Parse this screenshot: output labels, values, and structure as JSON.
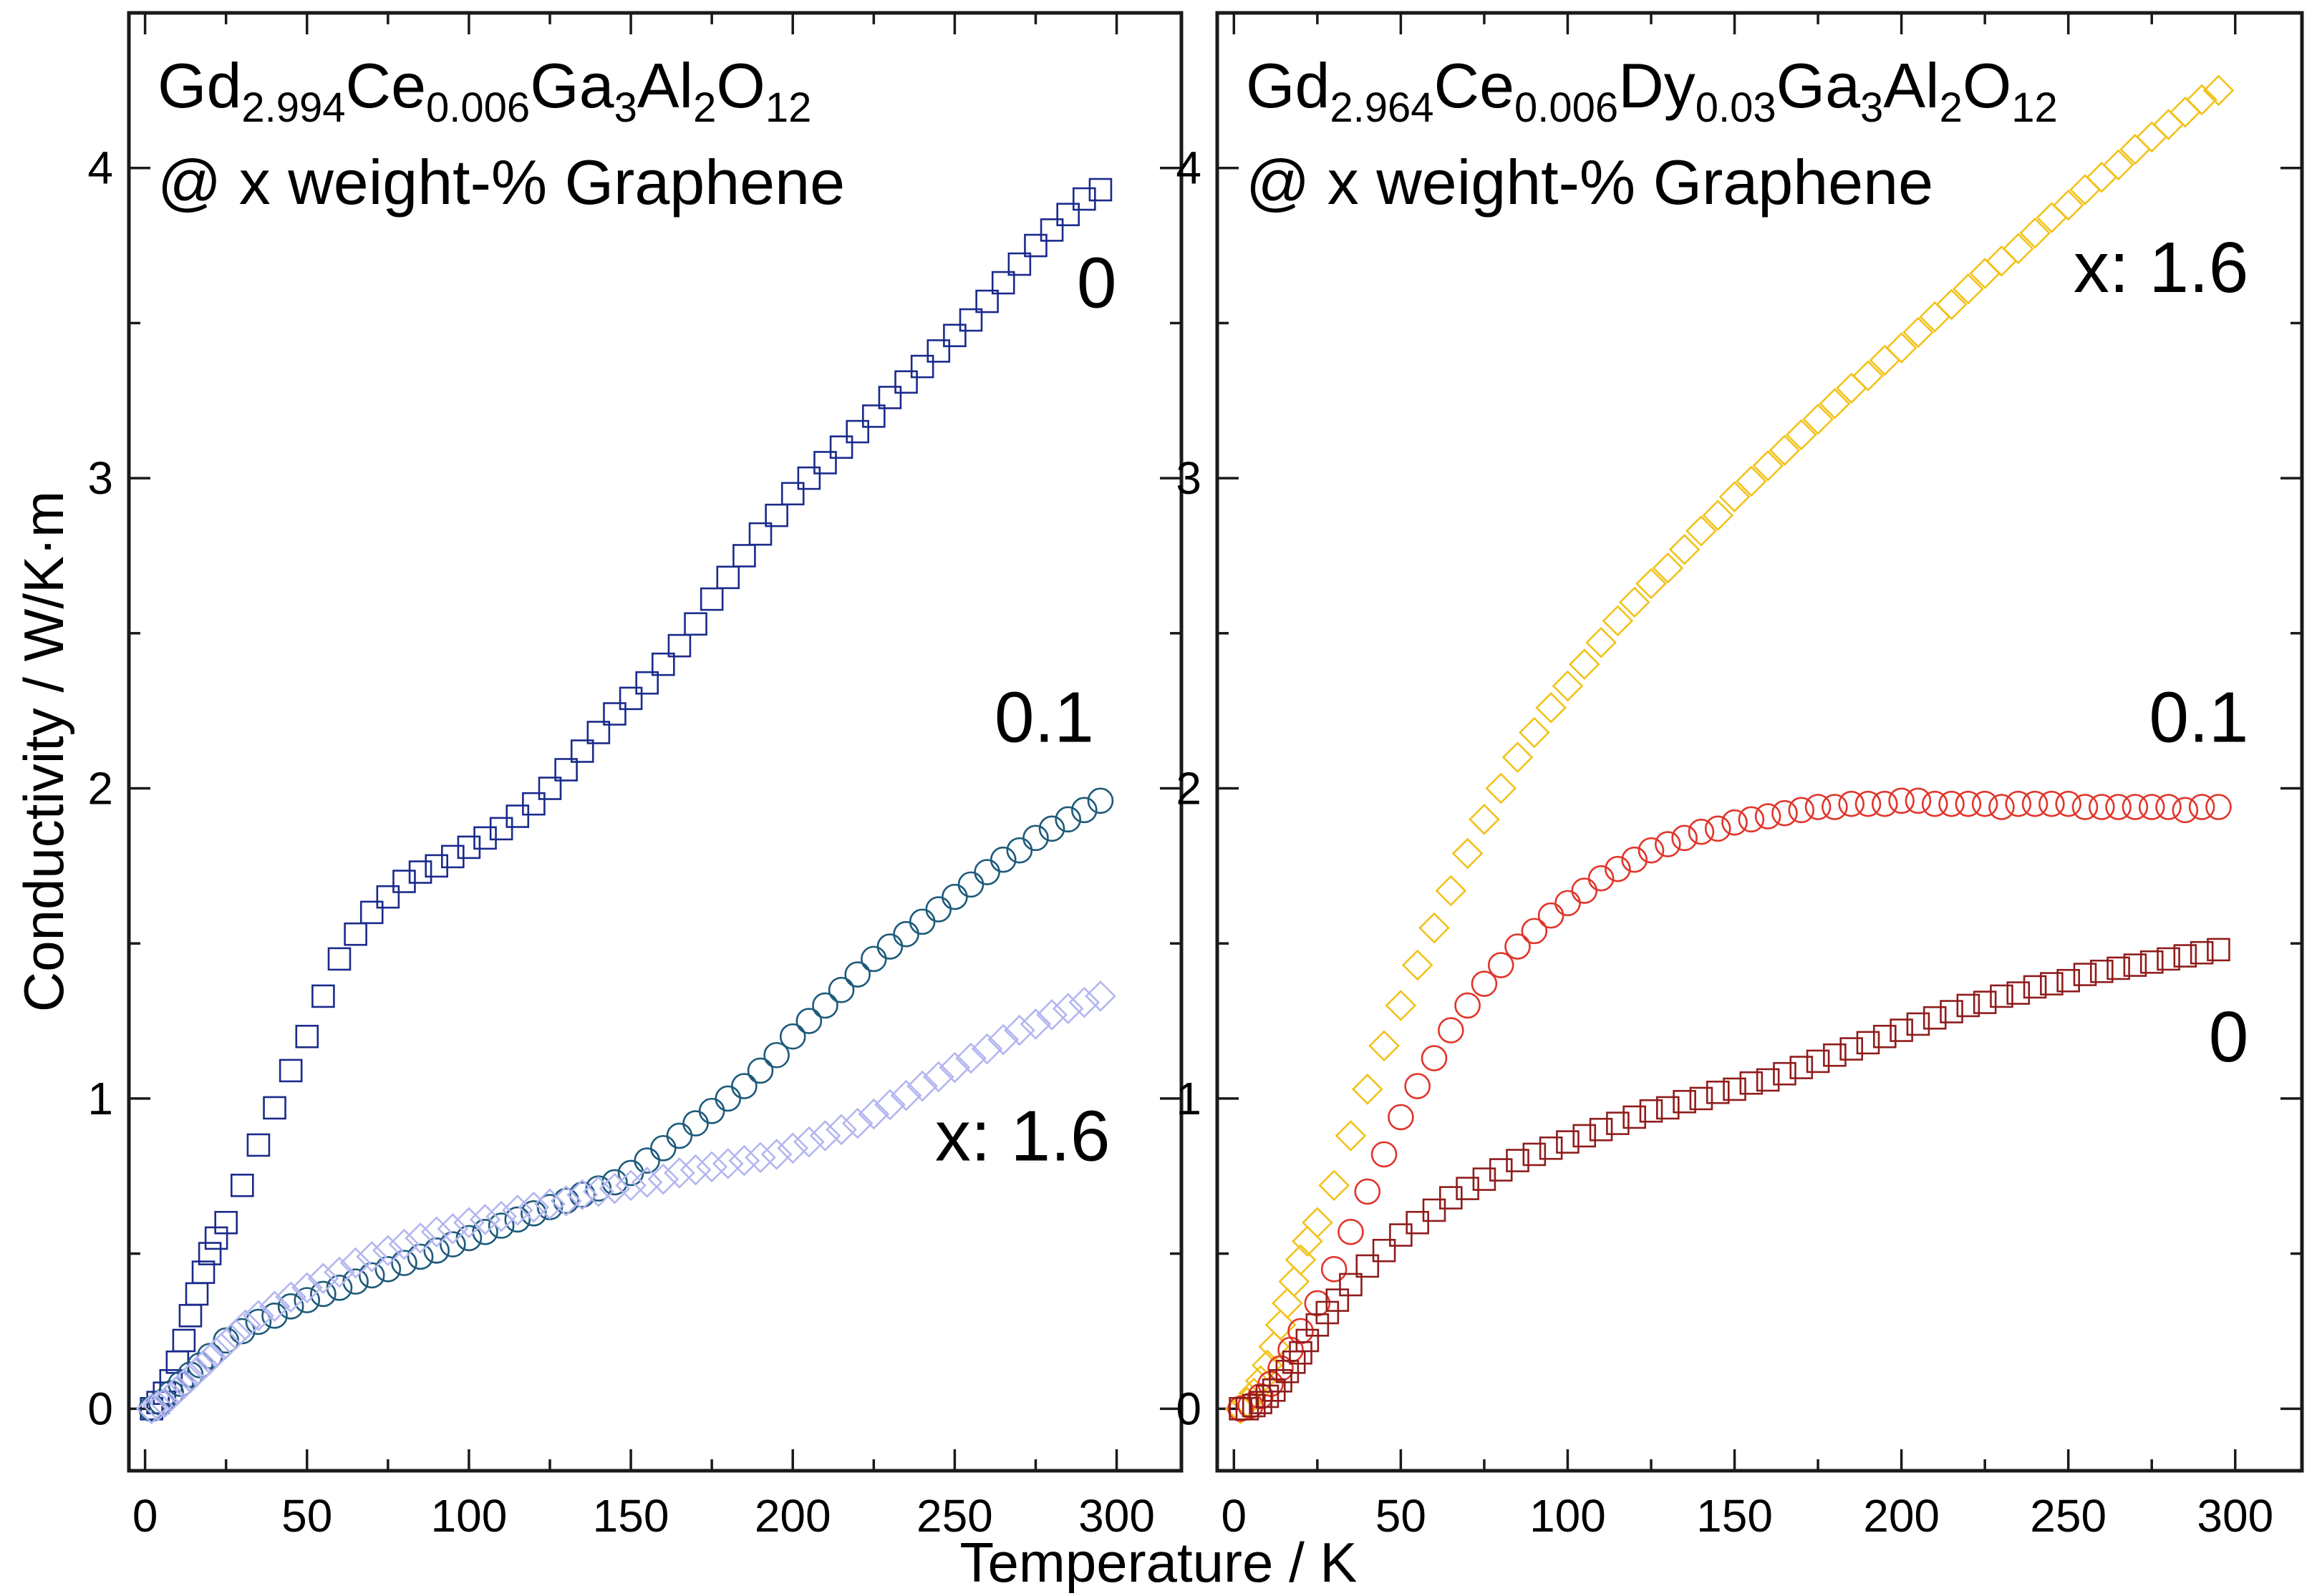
{
  "figure": {
    "xlabel": "Temperature / K",
    "ylabel": "Conductivity / W/K·m"
  },
  "chart_data": [
    {
      "type": "scatter",
      "id": "left",
      "title_line1": [
        {
          "t": "Gd",
          "sub": false
        },
        {
          "t": "2.994",
          "sub": true
        },
        {
          "t": "Ce",
          "sub": false
        },
        {
          "t": "0.006",
          "sub": true
        },
        {
          "t": "Ga",
          "sub": false
        },
        {
          "t": "3",
          "sub": true
        },
        {
          "t": "Al",
          "sub": false
        },
        {
          "t": "2",
          "sub": true
        },
        {
          "t": "O",
          "sub": false
        },
        {
          "t": "12",
          "sub": true
        }
      ],
      "title_line2": "@ x weight-% Graphene",
      "xlim": [
        -5,
        320
      ],
      "ylim": [
        -0.2,
        4.5
      ],
      "xticks": [
        0,
        50,
        100,
        150,
        200,
        250,
        300
      ],
      "yticks": [
        0,
        1,
        2,
        3,
        4
      ],
      "series": [
        {
          "name": "0",
          "label": "0",
          "marker": "square",
          "color": "#1a2a8c",
          "label_pos": [
            300,
            3.55
          ],
          "x": [
            2,
            4,
            6,
            8,
            10,
            12,
            14,
            16,
            18,
            20,
            22,
            25,
            30,
            35,
            40,
            45,
            50,
            55,
            60,
            65,
            70,
            75,
            80,
            85,
            90,
            95,
            100,
            105,
            110,
            115,
            120,
            125,
            130,
            135,
            140,
            145,
            150,
            155,
            160,
            165,
            170,
            175,
            180,
            185,
            190,
            195,
            200,
            205,
            210,
            215,
            220,
            225,
            230,
            235,
            240,
            245,
            250,
            255,
            260,
            265,
            270,
            275,
            280,
            285,
            290,
            295
          ],
          "y": [
            0.0,
            0.02,
            0.05,
            0.09,
            0.15,
            0.22,
            0.3,
            0.37,
            0.44,
            0.5,
            0.55,
            0.6,
            0.72,
            0.85,
            0.97,
            1.09,
            1.2,
            1.33,
            1.45,
            1.53,
            1.6,
            1.65,
            1.7,
            1.73,
            1.75,
            1.78,
            1.81,
            1.84,
            1.87,
            1.91,
            1.95,
            2.0,
            2.06,
            2.12,
            2.18,
            2.24,
            2.29,
            2.34,
            2.4,
            2.46,
            2.53,
            2.61,
            2.68,
            2.75,
            2.82,
            2.88,
            2.95,
            3.0,
            3.05,
            3.1,
            3.15,
            3.2,
            3.26,
            3.31,
            3.36,
            3.41,
            3.46,
            3.51,
            3.57,
            3.63,
            3.69,
            3.75,
            3.8,
            3.85,
            3.9,
            3.93
          ]
        },
        {
          "name": "0.1",
          "label": "0.1",
          "marker": "circle",
          "color": "#1d5a7a",
          "label_pos": [
            293,
            2.15
          ],
          "x": [
            2,
            5,
            8,
            11,
            14,
            17,
            20,
            25,
            30,
            35,
            40,
            45,
            50,
            55,
            60,
            65,
            70,
            75,
            80,
            85,
            90,
            95,
            100,
            105,
            110,
            115,
            120,
            125,
            130,
            135,
            140,
            145,
            150,
            155,
            160,
            165,
            170,
            175,
            180,
            185,
            190,
            195,
            200,
            205,
            210,
            215,
            220,
            225,
            230,
            235,
            240,
            245,
            250,
            255,
            260,
            265,
            270,
            275,
            280,
            285,
            290,
            295
          ],
          "y": [
            0.0,
            0.02,
            0.05,
            0.08,
            0.11,
            0.14,
            0.17,
            0.22,
            0.25,
            0.28,
            0.3,
            0.33,
            0.35,
            0.37,
            0.39,
            0.41,
            0.43,
            0.45,
            0.47,
            0.49,
            0.51,
            0.53,
            0.55,
            0.57,
            0.59,
            0.61,
            0.63,
            0.65,
            0.67,
            0.69,
            0.71,
            0.73,
            0.76,
            0.8,
            0.84,
            0.88,
            0.92,
            0.96,
            1.0,
            1.04,
            1.09,
            1.14,
            1.2,
            1.25,
            1.3,
            1.35,
            1.4,
            1.45,
            1.49,
            1.53,
            1.57,
            1.61,
            1.65,
            1.69,
            1.73,
            1.77,
            1.8,
            1.84,
            1.87,
            1.9,
            1.93,
            1.96
          ]
        },
        {
          "name": "x: 1.6",
          "label": "x: 1.6",
          "marker": "diamond",
          "color": "#b3b6f0",
          "label_pos": [
            298,
            0.8
          ],
          "x": [
            2,
            4,
            6,
            8,
            10,
            12,
            14,
            16,
            18,
            20,
            22,
            25,
            28,
            31,
            35,
            40,
            45,
            50,
            55,
            60,
            65,
            70,
            75,
            80,
            85,
            90,
            95,
            100,
            105,
            110,
            115,
            120,
            125,
            130,
            135,
            140,
            145,
            150,
            155,
            160,
            165,
            170,
            175,
            180,
            185,
            190,
            195,
            200,
            205,
            210,
            215,
            220,
            225,
            230,
            235,
            240,
            245,
            250,
            255,
            260,
            265,
            270,
            275,
            280,
            285,
            290,
            295
          ],
          "y": [
            0.0,
            0.01,
            0.02,
            0.04,
            0.06,
            0.08,
            0.1,
            0.12,
            0.14,
            0.16,
            0.18,
            0.21,
            0.24,
            0.27,
            0.3,
            0.33,
            0.36,
            0.39,
            0.42,
            0.44,
            0.47,
            0.49,
            0.51,
            0.53,
            0.55,
            0.57,
            0.58,
            0.6,
            0.61,
            0.62,
            0.64,
            0.65,
            0.66,
            0.67,
            0.69,
            0.7,
            0.71,
            0.72,
            0.73,
            0.74,
            0.76,
            0.77,
            0.78,
            0.79,
            0.8,
            0.81,
            0.82,
            0.84,
            0.86,
            0.88,
            0.9,
            0.92,
            0.95,
            0.98,
            1.01,
            1.04,
            1.07,
            1.1,
            1.13,
            1.16,
            1.19,
            1.22,
            1.24,
            1.27,
            1.29,
            1.31,
            1.33
          ]
        }
      ]
    },
    {
      "type": "scatter",
      "id": "right",
      "title_line1": [
        {
          "t": "Gd",
          "sub": false
        },
        {
          "t": "2.964",
          "sub": true
        },
        {
          "t": "Ce",
          "sub": false
        },
        {
          "t": "0.006",
          "sub": true
        },
        {
          "t": "Dy",
          "sub": false
        },
        {
          "t": "0.03",
          "sub": true
        },
        {
          "t": "Ga",
          "sub": false
        },
        {
          "t": "3",
          "sub": true
        },
        {
          "t": "Al",
          "sub": false
        },
        {
          "t": "2",
          "sub": true
        },
        {
          "t": "O",
          "sub": false
        },
        {
          "t": "12",
          "sub": true
        }
      ],
      "title_line2": "@ x weight-% Graphene",
      "xlim": [
        -5,
        320
      ],
      "ylim": [
        -0.2,
        4.5
      ],
      "xticks": [
        0,
        50,
        100,
        150,
        200,
        250,
        300
      ],
      "yticks": [
        0,
        1,
        2,
        3,
        4
      ],
      "series": [
        {
          "name": "x: 1.6",
          "label": "x: 1.6",
          "marker": "diamond",
          "color": "#f2c21a",
          "label_pos": [
            304,
            3.6
          ],
          "x": [
            2,
            4,
            6,
            8,
            10,
            12,
            14,
            16,
            18,
            20,
            22,
            25,
            30,
            35,
            40,
            45,
            50,
            55,
            60,
            65,
            70,
            75,
            80,
            85,
            90,
            95,
            100,
            105,
            110,
            115,
            120,
            125,
            130,
            135,
            140,
            145,
            150,
            155,
            160,
            165,
            170,
            175,
            180,
            185,
            190,
            195,
            200,
            205,
            210,
            215,
            220,
            225,
            230,
            235,
            240,
            245,
            250,
            255,
            260,
            265,
            270,
            275,
            280,
            285,
            290,
            295
          ],
          "y": [
            0.0,
            0.02,
            0.05,
            0.09,
            0.14,
            0.2,
            0.27,
            0.34,
            0.41,
            0.48,
            0.54,
            0.6,
            0.72,
            0.88,
            1.03,
            1.17,
            1.3,
            1.43,
            1.55,
            1.67,
            1.79,
            1.9,
            2.0,
            2.1,
            2.18,
            2.26,
            2.33,
            2.4,
            2.47,
            2.54,
            2.6,
            2.66,
            2.71,
            2.77,
            2.83,
            2.88,
            2.94,
            2.99,
            3.04,
            3.09,
            3.14,
            3.19,
            3.24,
            3.29,
            3.33,
            3.38,
            3.42,
            3.47,
            3.52,
            3.56,
            3.61,
            3.66,
            3.7,
            3.74,
            3.79,
            3.84,
            3.88,
            3.93,
            3.97,
            4.01,
            4.06,
            4.1,
            4.14,
            4.18,
            4.22,
            4.25
          ]
        },
        {
          "name": "0.1",
          "label": "0.1",
          "marker": "circle",
          "color": "#e0352b",
          "label_pos": [
            304,
            2.15
          ],
          "x": [
            2,
            5,
            8,
            11,
            14,
            17,
            20,
            25,
            30,
            35,
            40,
            45,
            50,
            55,
            60,
            65,
            70,
            75,
            80,
            85,
            90,
            95,
            100,
            105,
            110,
            115,
            120,
            125,
            130,
            135,
            140,
            145,
            150,
            155,
            160,
            165,
            170,
            175,
            180,
            185,
            190,
            195,
            200,
            205,
            210,
            215,
            220,
            225,
            230,
            235,
            240,
            245,
            250,
            255,
            260,
            265,
            270,
            275,
            280,
            285,
            290,
            295
          ],
          "y": [
            0.0,
            0.01,
            0.04,
            0.08,
            0.13,
            0.19,
            0.25,
            0.34,
            0.45,
            0.57,
            0.7,
            0.82,
            0.94,
            1.04,
            1.13,
            1.22,
            1.3,
            1.37,
            1.43,
            1.49,
            1.54,
            1.59,
            1.63,
            1.67,
            1.71,
            1.74,
            1.77,
            1.8,
            1.82,
            1.84,
            1.86,
            1.87,
            1.89,
            1.9,
            1.91,
            1.92,
            1.93,
            1.94,
            1.94,
            1.95,
            1.95,
            1.95,
            1.96,
            1.96,
            1.95,
            1.95,
            1.95,
            1.95,
            1.94,
            1.95,
            1.95,
            1.95,
            1.95,
            1.94,
            1.94,
            1.94,
            1.94,
            1.94,
            1.94,
            1.93,
            1.94,
            1.94
          ]
        },
        {
          "name": "0",
          "label": "0",
          "marker": "square",
          "color": "#8f1c1c",
          "label_pos": [
            304,
            1.12
          ],
          "x": [
            2,
            4,
            6,
            8,
            10,
            12,
            14,
            16,
            18,
            20,
            22,
            25,
            28,
            31,
            35,
            40,
            45,
            50,
            55,
            60,
            65,
            70,
            75,
            80,
            85,
            90,
            95,
            100,
            105,
            110,
            115,
            120,
            125,
            130,
            135,
            140,
            145,
            150,
            155,
            160,
            165,
            170,
            175,
            180,
            185,
            190,
            195,
            200,
            205,
            210,
            215,
            220,
            225,
            230,
            235,
            240,
            245,
            250,
            255,
            260,
            265,
            270,
            275,
            280,
            285,
            290,
            295
          ],
          "y": [
            0.0,
            0.0,
            0.01,
            0.02,
            0.04,
            0.06,
            0.09,
            0.12,
            0.15,
            0.18,
            0.22,
            0.27,
            0.31,
            0.35,
            0.4,
            0.46,
            0.51,
            0.56,
            0.6,
            0.64,
            0.68,
            0.71,
            0.74,
            0.77,
            0.8,
            0.82,
            0.84,
            0.86,
            0.88,
            0.9,
            0.92,
            0.94,
            0.96,
            0.97,
            0.99,
            1.0,
            1.02,
            1.03,
            1.05,
            1.06,
            1.08,
            1.1,
            1.12,
            1.14,
            1.16,
            1.18,
            1.2,
            1.22,
            1.24,
            1.26,
            1.28,
            1.3,
            1.31,
            1.33,
            1.34,
            1.36,
            1.37,
            1.38,
            1.4,
            1.41,
            1.42,
            1.43,
            1.44,
            1.45,
            1.46,
            1.47,
            1.48
          ]
        }
      ]
    }
  ]
}
